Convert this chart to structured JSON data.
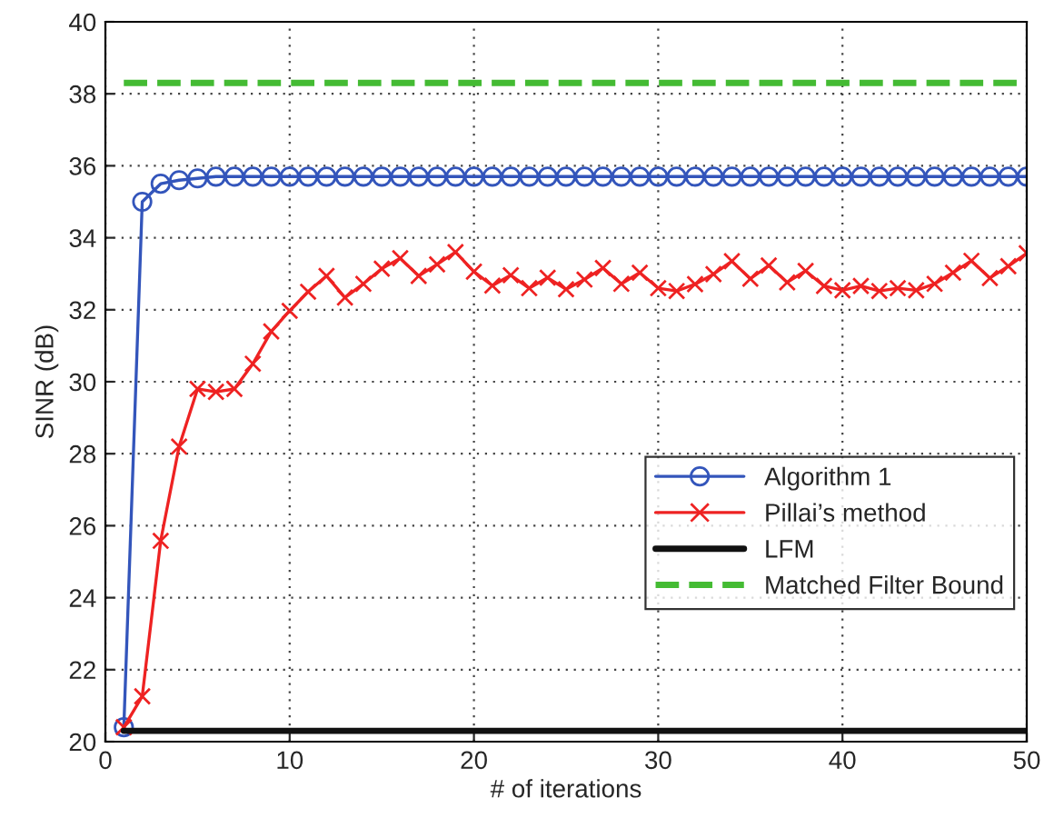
{
  "chart_data": {
    "type": "line",
    "xlabel": "# of iterations",
    "ylabel": "SINR (dB)",
    "x": [
      1,
      2,
      3,
      4,
      5,
      6,
      7,
      8,
      9,
      10,
      11,
      12,
      13,
      14,
      15,
      16,
      17,
      18,
      19,
      20,
      21,
      22,
      23,
      24,
      25,
      26,
      27,
      28,
      29,
      30,
      31,
      32,
      33,
      34,
      35,
      36,
      37,
      38,
      39,
      40,
      41,
      42,
      43,
      44,
      45,
      46,
      47,
      48,
      49,
      50
    ],
    "series": [
      {
        "name": "Algorithm 1",
        "color": "#3355bb",
        "marker": "circle",
        "line_style": "solid",
        "values": [
          20.4,
          35.0,
          35.5,
          35.6,
          35.65,
          35.7,
          35.7,
          35.7,
          35.7,
          35.7,
          35.7,
          35.7,
          35.7,
          35.7,
          35.7,
          35.7,
          35.7,
          35.7,
          35.7,
          35.7,
          35.7,
          35.7,
          35.7,
          35.7,
          35.7,
          35.7,
          35.7,
          35.7,
          35.7,
          35.7,
          35.7,
          35.7,
          35.7,
          35.7,
          35.7,
          35.7,
          35.7,
          35.7,
          35.7,
          35.7,
          35.7,
          35.7,
          35.7,
          35.7,
          35.7,
          35.7,
          35.7,
          35.7,
          35.7,
          35.7
        ]
      },
      {
        "name": "Pillai’s method",
        "color": "#ee2222",
        "marker": "cross",
        "line_style": "solid",
        "values": [
          20.4,
          21.26,
          25.58,
          28.2,
          29.8,
          29.72,
          29.8,
          30.5,
          31.4,
          31.97,
          32.5,
          32.94,
          32.34,
          32.72,
          33.14,
          33.43,
          32.94,
          33.26,
          33.6,
          33.06,
          32.67,
          32.96,
          32.6,
          32.89,
          32.57,
          32.84,
          33.16,
          32.72,
          33.03,
          32.6,
          32.52,
          32.71,
          32.99,
          33.35,
          32.86,
          33.23,
          32.76,
          33.08,
          32.66,
          32.54,
          32.66,
          32.52,
          32.6,
          32.54,
          32.72,
          33.03,
          33.36,
          32.88,
          33.21,
          33.57
        ]
      },
      {
        "name": "LFM",
        "color": "#111111",
        "marker": "none",
        "line_style": "solid",
        "values": [
          20.3,
          20.3,
          20.3,
          20.3,
          20.3,
          20.3,
          20.3,
          20.3,
          20.3,
          20.3,
          20.3,
          20.3,
          20.3,
          20.3,
          20.3,
          20.3,
          20.3,
          20.3,
          20.3,
          20.3,
          20.3,
          20.3,
          20.3,
          20.3,
          20.3,
          20.3,
          20.3,
          20.3,
          20.3,
          20.3,
          20.3,
          20.3,
          20.3,
          20.3,
          20.3,
          20.3,
          20.3,
          20.3,
          20.3,
          20.3,
          20.3,
          20.3,
          20.3,
          20.3,
          20.3,
          20.3,
          20.3,
          20.3,
          20.3,
          20.3
        ]
      },
      {
        "name": "Matched Filter Bound",
        "color": "#44bb33",
        "marker": "none",
        "line_style": "dashed",
        "values": [
          38.3,
          38.3,
          38.3,
          38.3,
          38.3,
          38.3,
          38.3,
          38.3,
          38.3,
          38.3,
          38.3,
          38.3,
          38.3,
          38.3,
          38.3,
          38.3,
          38.3,
          38.3,
          38.3,
          38.3,
          38.3,
          38.3,
          38.3,
          38.3,
          38.3,
          38.3,
          38.3,
          38.3,
          38.3,
          38.3,
          38.3,
          38.3,
          38.3,
          38.3,
          38.3,
          38.3,
          38.3,
          38.3,
          38.3,
          38.3,
          38.3,
          38.3,
          38.3,
          38.3,
          38.3,
          38.3,
          38.3,
          38.3,
          38.3,
          38.3
        ]
      }
    ],
    "xlim": [
      0,
      50
    ],
    "xticks": [
      0,
      10,
      20,
      30,
      40,
      50
    ],
    "ylim": [
      20,
      40
    ],
    "yticks": [
      20,
      22,
      24,
      26,
      28,
      30,
      32,
      34,
      36,
      38,
      40
    ],
    "grid": true,
    "legend": "right"
  }
}
